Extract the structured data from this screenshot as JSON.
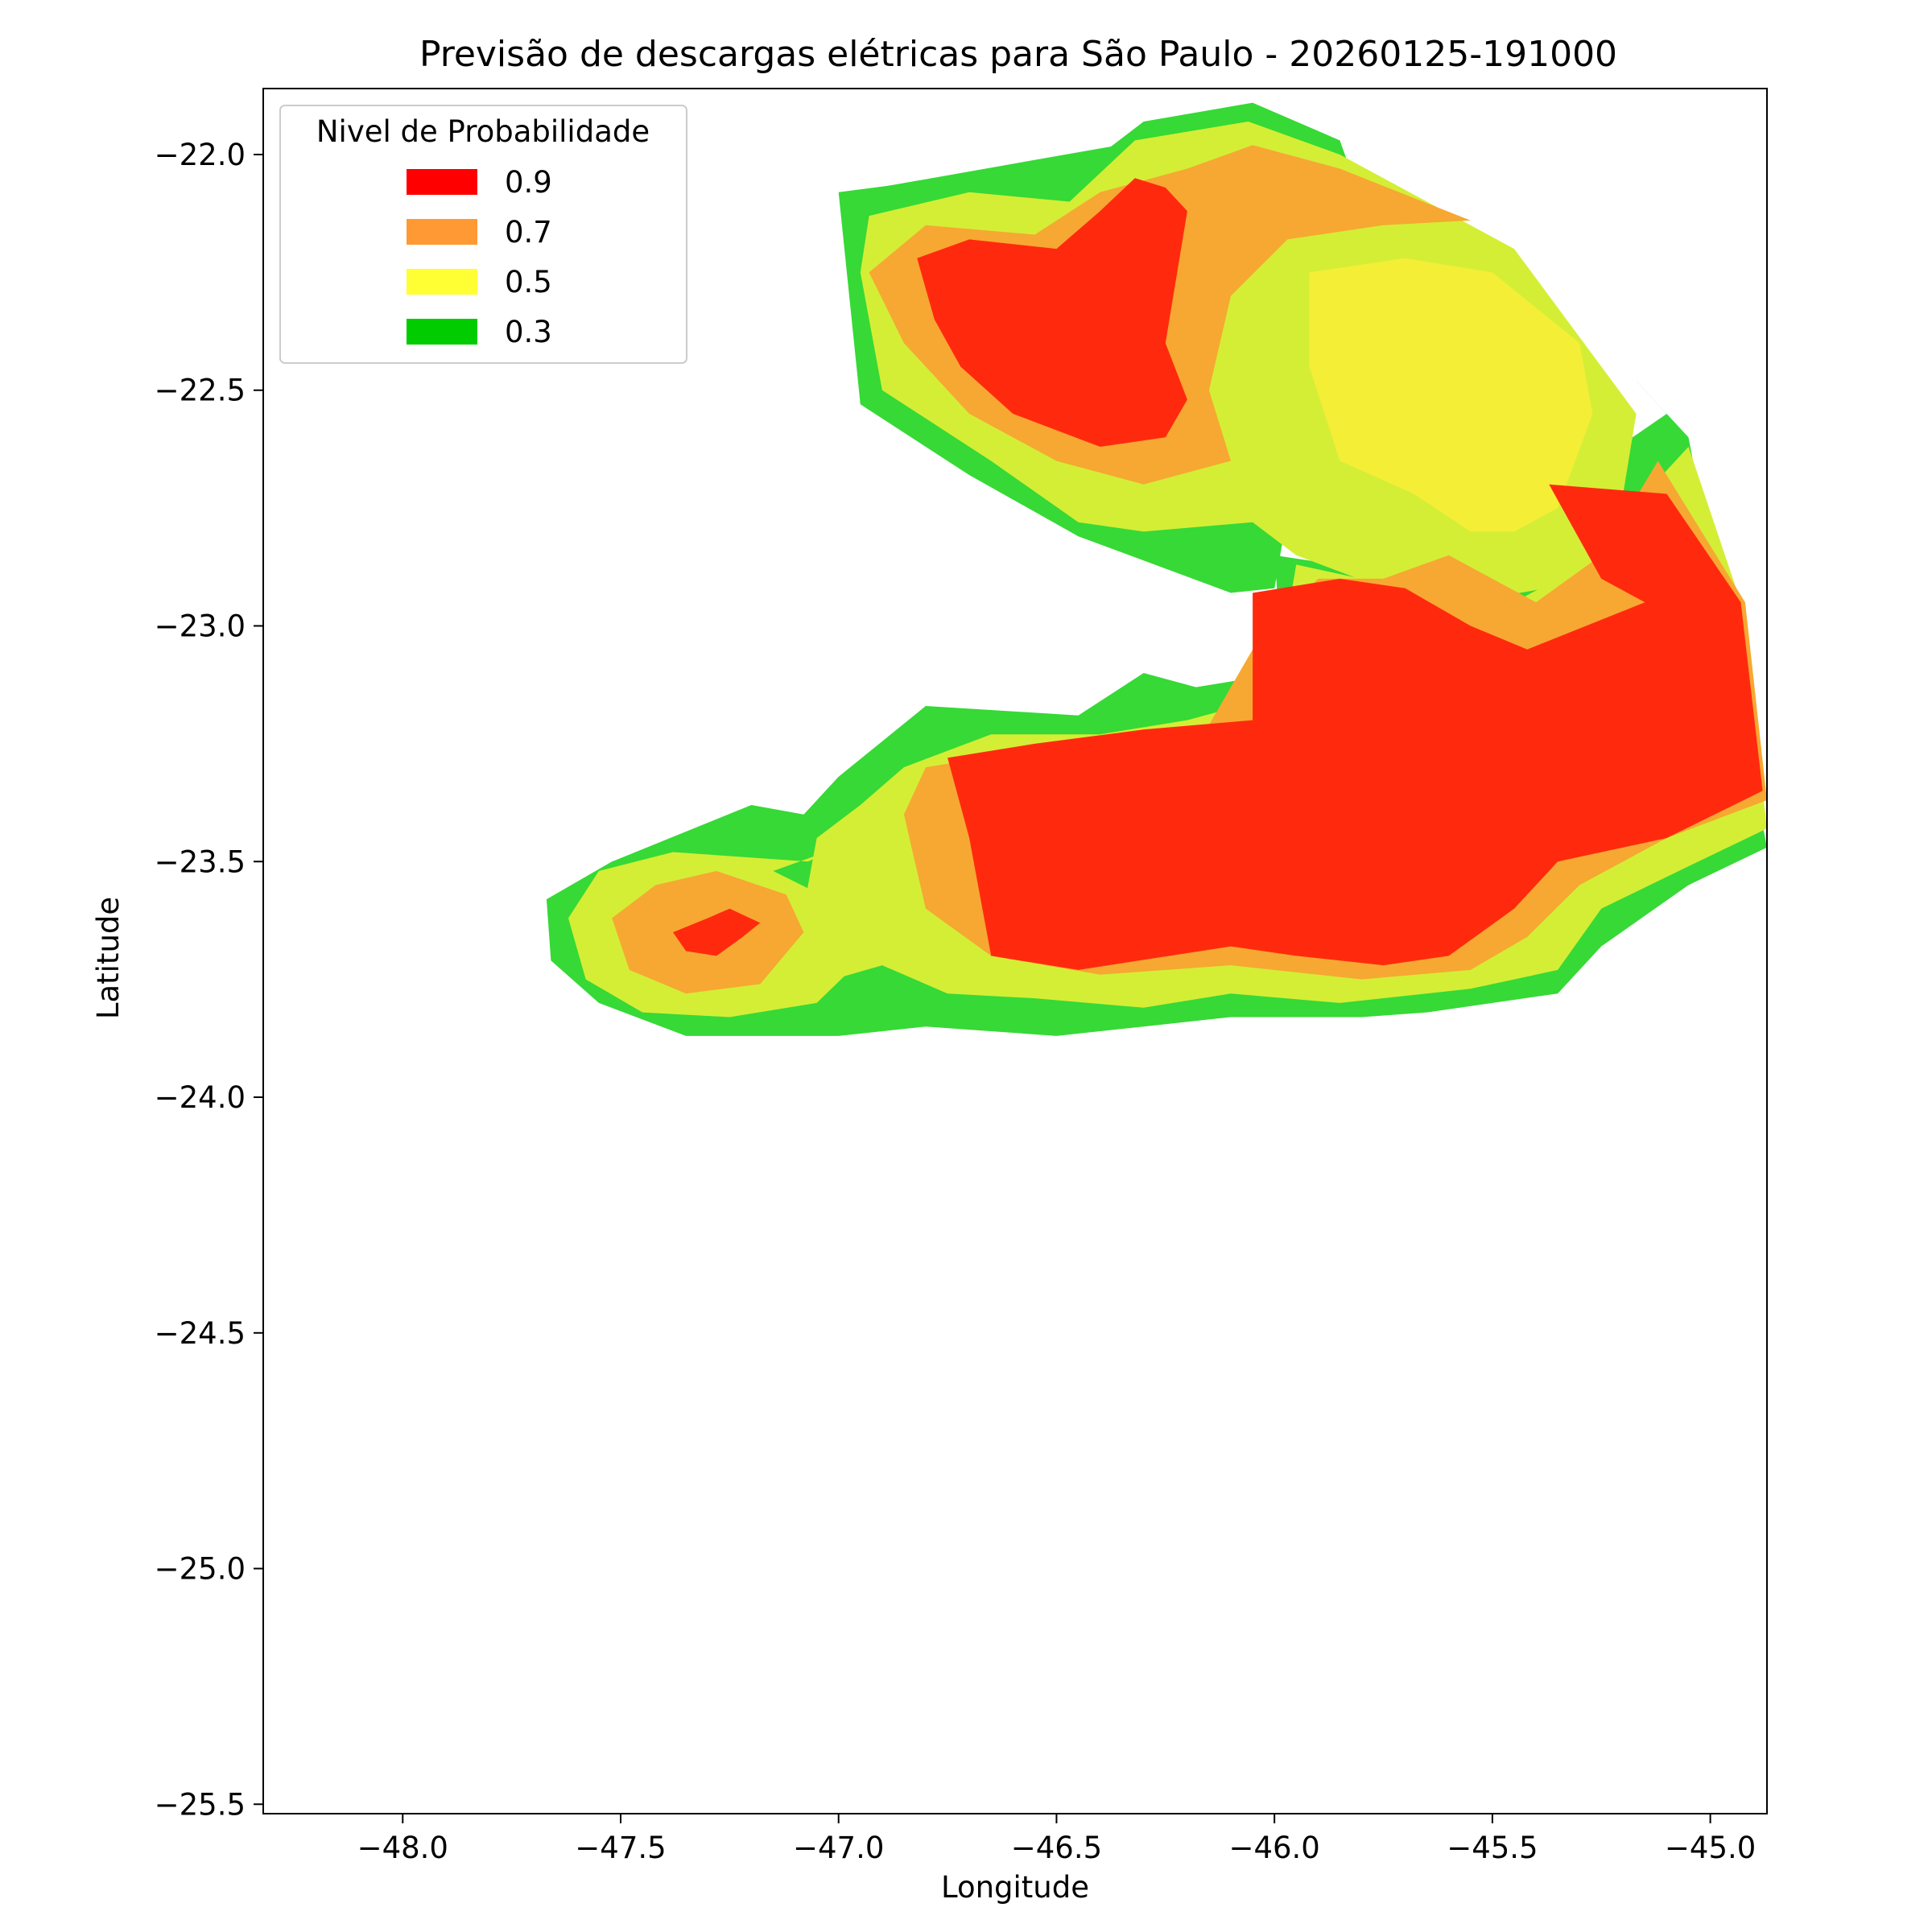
{
  "chart_data": {
    "type": "contourf",
    "title": "Previsão de descargas elétricas para São Paulo - 20260125-191000",
    "xlabel": "Longitude",
    "ylabel": "Latitude",
    "xlim": [
      -48.32,
      -44.87
    ],
    "ylim": [
      -25.52,
      -21.86
    ],
    "xticks": [
      -48.0,
      -47.5,
      -47.0,
      -46.5,
      -46.0,
      -45.5,
      -45.0
    ],
    "xtick_labels": [
      "−48.0",
      "−47.5",
      "−47.0",
      "−46.5",
      "−46.0",
      "−45.5",
      "−45.0"
    ],
    "yticks": [
      -22.0,
      -22.5,
      -23.0,
      -23.5,
      -24.0,
      -24.5,
      -25.0,
      -25.5
    ],
    "ytick_labels": [
      "−22.0",
      "−22.5",
      "−23.0",
      "−23.5",
      "−24.0",
      "−24.5",
      "−25.0",
      "−25.5"
    ],
    "grid": false,
    "legend": {
      "title": "Nivel de Probabilidade",
      "placement": "top-left",
      "entries": [
        {
          "label": "0.9",
          "color": "#ff0000"
        },
        {
          "label": "0.7",
          "color": "#ff9933"
        },
        {
          "label": "0.5",
          "color": "#ffff33"
        },
        {
          "label": "0.3",
          "color": "#00cc00"
        }
      ]
    },
    "fill_colors": {
      "0.3": "#36d936",
      "0.4": "#d4ee36",
      "0.5": "#f4ee36",
      "0.7": "#f6a832",
      "0.9": "#ff2a0d"
    },
    "regions": [
      {
        "level": "0.3",
        "name": "north-green",
        "points": [
          [
            -46.97,
            -22.08
          ],
          [
            -46.45,
            -22.08
          ],
          [
            -46.3,
            -21.96
          ],
          [
            -46.05,
            -21.93
          ],
          [
            -45.8,
            -22.0
          ],
          [
            -45.4,
            -22.25
          ],
          [
            -45.1,
            -22.55
          ],
          [
            -45.65,
            -22.9
          ],
          [
            -46.0,
            -22.85
          ],
          [
            -45.98,
            -23.1
          ],
          [
            -46.18,
            -23.13
          ],
          [
            -46.3,
            -23.1
          ],
          [
            -46.45,
            -23.19
          ],
          [
            -46.8,
            -23.17
          ],
          [
            -47.0,
            -23.32
          ],
          [
            -47.08,
            -23.4
          ],
          [
            -47.2,
            -23.38
          ],
          [
            -47.52,
            -23.5
          ],
          [
            -47.67,
            -23.58
          ],
          [
            -47.66,
            -23.71
          ],
          [
            -47.55,
            -23.8
          ],
          [
            -47.35,
            -23.87
          ],
          [
            -47.0,
            -23.87
          ],
          [
            -46.8,
            -23.85
          ],
          [
            -46.5,
            -23.87
          ],
          [
            -46.3,
            -23.85
          ],
          [
            -46.1,
            -23.83
          ],
          [
            -45.8,
            -23.83
          ],
          [
            -45.65,
            -23.82
          ],
          [
            -45.35,
            -23.78
          ],
          [
            -45.25,
            -23.68
          ],
          [
            -45.05,
            -23.55
          ],
          [
            -44.87,
            -23.47
          ],
          [
            -45.05,
            -22.6
          ],
          [
            -45.4,
            -22.25
          ],
          [
            -45.8,
            -22.0
          ],
          [
            -46.05,
            -21.93
          ]
        ]
      },
      {
        "level": "0.3",
        "name": "north-arm",
        "points": [
          [
            -47.0,
            -22.08
          ],
          [
            -46.75,
            -22.05
          ],
          [
            -46.47,
            -22.05
          ],
          [
            -46.3,
            -21.93
          ],
          [
            -46.05,
            -21.89
          ],
          [
            -45.85,
            -21.97
          ],
          [
            -45.8,
            -22.1
          ],
          [
            -46.0,
            -22.2
          ],
          [
            -46.05,
            -22.55
          ],
          [
            -45.97,
            -22.76
          ],
          [
            -46.0,
            -22.92
          ],
          [
            -46.1,
            -22.93
          ],
          [
            -46.45,
            -22.81
          ],
          [
            -46.7,
            -22.68
          ],
          [
            -46.95,
            -22.53
          ]
        ]
      },
      {
        "level": "0.4",
        "name": "north-light",
        "points": [
          [
            -46.93,
            -22.13
          ],
          [
            -46.7,
            -22.08
          ],
          [
            -46.47,
            -22.1
          ],
          [
            -46.32,
            -21.97
          ],
          [
            -46.06,
            -21.93
          ],
          [
            -45.85,
            -22.0
          ],
          [
            -45.45,
            -22.2
          ],
          [
            -45.17,
            -22.55
          ],
          [
            -45.2,
            -22.72
          ],
          [
            -45.25,
            -22.9
          ],
          [
            -45.5,
            -22.94
          ],
          [
            -45.6,
            -22.95
          ],
          [
            -45.75,
            -22.92
          ],
          [
            -45.95,
            -22.85
          ],
          [
            -46.05,
            -22.78
          ],
          [
            -46.3,
            -22.8
          ],
          [
            -46.45,
            -22.78
          ],
          [
            -46.65,
            -22.65
          ],
          [
            -46.9,
            -22.5
          ],
          [
            -46.95,
            -22.25
          ]
        ]
      },
      {
        "level": "0.4",
        "name": "south-light",
        "points": [
          [
            -45.95,
            -22.87
          ],
          [
            -45.7,
            -22.92
          ],
          [
            -45.45,
            -22.95
          ],
          [
            -45.25,
            -22.85
          ],
          [
            -45.18,
            -22.75
          ],
          [
            -45.05,
            -22.62
          ],
          [
            -44.93,
            -22.95
          ],
          [
            -44.87,
            -23.43
          ],
          [
            -45.05,
            -23.51
          ],
          [
            -45.25,
            -23.6
          ],
          [
            -45.35,
            -23.73
          ],
          [
            -45.55,
            -23.77
          ],
          [
            -45.85,
            -23.8
          ],
          [
            -46.1,
            -23.78
          ],
          [
            -46.3,
            -23.81
          ],
          [
            -46.55,
            -23.79
          ],
          [
            -46.75,
            -23.78
          ],
          [
            -46.9,
            -23.72
          ],
          [
            -47.05,
            -23.76
          ],
          [
            -47.1,
            -23.7
          ],
          [
            -47.05,
            -23.45
          ],
          [
            -46.95,
            -23.38
          ],
          [
            -46.85,
            -23.3
          ],
          [
            -46.65,
            -23.23
          ],
          [
            -46.4,
            -23.23
          ],
          [
            -46.2,
            -23.2
          ],
          [
            -46.0,
            -23.15
          ],
          [
            -45.97,
            -22.98
          ]
        ]
      },
      {
        "level": "0.4",
        "name": "west-light",
        "points": [
          [
            -47.15,
            -23.52
          ],
          [
            -47.0,
            -23.47
          ],
          [
            -47.07,
            -23.5
          ],
          [
            -47.38,
            -23.48
          ],
          [
            -47.55,
            -23.52
          ],
          [
            -47.62,
            -23.62
          ],
          [
            -47.58,
            -23.75
          ],
          [
            -47.45,
            -23.82
          ],
          [
            -47.25,
            -23.83
          ],
          [
            -47.05,
            -23.8
          ],
          [
            -46.95,
            -23.71
          ],
          [
            -47.02,
            -23.58
          ]
        ]
      },
      {
        "level": "0.5",
        "name": "yellow-core",
        "points": [
          [
            -45.92,
            -22.25
          ],
          [
            -45.7,
            -22.22
          ],
          [
            -45.5,
            -22.25
          ],
          [
            -45.3,
            -22.4
          ],
          [
            -45.27,
            -22.55
          ],
          [
            -45.35,
            -22.75
          ],
          [
            -45.45,
            -22.8
          ],
          [
            -45.55,
            -22.8
          ],
          [
            -45.68,
            -22.72
          ],
          [
            -45.85,
            -22.65
          ],
          [
            -45.92,
            -22.45
          ]
        ]
      },
      {
        "level": "0.7",
        "name": "north-orange",
        "points": [
          [
            -46.93,
            -22.25
          ],
          [
            -46.8,
            -22.15
          ],
          [
            -46.55,
            -22.17
          ],
          [
            -46.4,
            -22.08
          ],
          [
            -46.2,
            -22.03
          ],
          [
            -46.05,
            -21.98
          ],
          [
            -45.85,
            -22.03
          ],
          [
            -45.55,
            -22.14
          ],
          [
            -45.75,
            -22.15
          ],
          [
            -45.97,
            -22.18
          ],
          [
            -46.1,
            -22.3
          ],
          [
            -46.15,
            -22.5
          ],
          [
            -46.1,
            -22.65
          ],
          [
            -46.3,
            -22.7
          ],
          [
            -46.5,
            -22.65
          ],
          [
            -46.7,
            -22.55
          ],
          [
            -46.85,
            -22.4
          ]
        ]
      },
      {
        "level": "0.7",
        "name": "south-orange",
        "points": [
          [
            -45.6,
            -22.85
          ],
          [
            -45.4,
            -22.95
          ],
          [
            -45.25,
            -22.85
          ],
          [
            -45.12,
            -22.65
          ],
          [
            -44.92,
            -22.95
          ],
          [
            -44.87,
            -23.37
          ],
          [
            -45.1,
            -23.45
          ],
          [
            -45.3,
            -23.55
          ],
          [
            -45.42,
            -23.66
          ],
          [
            -45.55,
            -23.73
          ],
          [
            -45.8,
            -23.75
          ],
          [
            -46.1,
            -23.72
          ],
          [
            -46.4,
            -23.74
          ],
          [
            -46.65,
            -23.7
          ],
          [
            -46.8,
            -23.6
          ],
          [
            -46.85,
            -23.4
          ],
          [
            -46.8,
            -23.3
          ],
          [
            -46.6,
            -23.27
          ],
          [
            -46.35,
            -23.26
          ],
          [
            -46.15,
            -23.21
          ],
          [
            -46.05,
            -23.05
          ],
          [
            -45.9,
            -22.9
          ],
          [
            -45.75,
            -22.9
          ]
        ]
      },
      {
        "level": "0.7",
        "name": "west-orange",
        "points": [
          [
            -47.42,
            -23.55
          ],
          [
            -47.28,
            -23.52
          ],
          [
            -47.12,
            -23.57
          ],
          [
            -47.08,
            -23.65
          ],
          [
            -47.18,
            -23.76
          ],
          [
            -47.35,
            -23.78
          ],
          [
            -47.48,
            -23.73
          ],
          [
            -47.52,
            -23.62
          ]
        ]
      },
      {
        "level": "0.9",
        "name": "north-red",
        "points": [
          [
            -46.82,
            -22.22
          ],
          [
            -46.7,
            -22.18
          ],
          [
            -46.5,
            -22.2
          ],
          [
            -46.4,
            -22.12
          ],
          [
            -46.32,
            -22.05
          ],
          [
            -46.25,
            -22.07
          ],
          [
            -46.2,
            -22.12
          ],
          [
            -46.25,
            -22.4
          ],
          [
            -46.2,
            -22.52
          ],
          [
            -46.25,
            -22.6
          ],
          [
            -46.4,
            -22.62
          ],
          [
            -46.6,
            -22.55
          ],
          [
            -46.72,
            -22.45
          ],
          [
            -46.78,
            -22.35
          ]
        ]
      },
      {
        "level": "0.9",
        "name": "south-red",
        "points": [
          [
            -45.37,
            -22.7
          ],
          [
            -45.25,
            -22.9
          ],
          [
            -45.15,
            -22.95
          ],
          [
            -45.42,
            -23.05
          ],
          [
            -45.55,
            -23.0
          ],
          [
            -45.7,
            -22.92
          ],
          [
            -45.85,
            -22.9
          ],
          [
            -46.05,
            -22.93
          ],
          [
            -46.05,
            -23.2
          ],
          [
            -46.3,
            -23.22
          ],
          [
            -46.55,
            -23.25
          ],
          [
            -46.75,
            -23.28
          ],
          [
            -46.7,
            -23.45
          ],
          [
            -46.65,
            -23.7
          ],
          [
            -46.45,
            -23.73
          ],
          [
            -46.1,
            -23.68
          ],
          [
            -45.95,
            -23.7
          ],
          [
            -45.75,
            -23.72
          ],
          [
            -45.6,
            -23.7
          ],
          [
            -45.45,
            -23.6
          ],
          [
            -45.35,
            -23.5
          ],
          [
            -45.1,
            -23.45
          ],
          [
            -44.88,
            -23.35
          ],
          [
            -44.93,
            -22.95
          ],
          [
            -45.1,
            -22.72
          ]
        ]
      },
      {
        "level": "0.9",
        "name": "west-red",
        "points": [
          [
            -47.25,
            -23.6
          ],
          [
            -47.3,
            -23.62
          ],
          [
            -47.38,
            -23.65
          ],
          [
            -47.35,
            -23.69
          ],
          [
            -47.28,
            -23.7
          ],
          [
            -47.22,
            -23.66
          ],
          [
            -47.18,
            -23.63
          ]
        ]
      }
    ]
  }
}
